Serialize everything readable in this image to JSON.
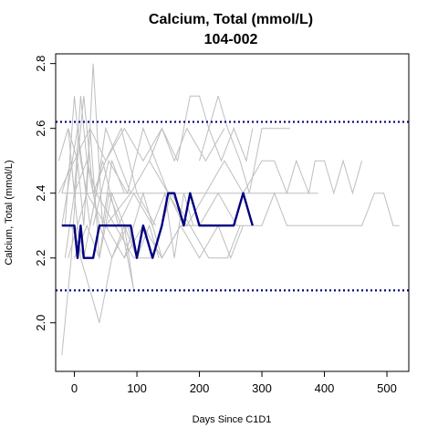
{
  "chart_data": {
    "type": "line",
    "title": "Calcium, Total (mmol/L)",
    "subtitle": "104-002",
    "xlabel": "Days Since C1D1",
    "ylabel": "Calcium, Total (mmol/L)",
    "xlim": [
      -30,
      535
    ],
    "ylim": [
      1.85,
      2.83
    ],
    "xticks": [
      0,
      100,
      200,
      300,
      400,
      500
    ],
    "yticks": [
      2.0,
      2.2,
      2.4,
      2.6,
      2.8
    ],
    "xtick_labels": [
      "0",
      "100",
      "200",
      "300",
      "400",
      "500"
    ],
    "ytick_labels": [
      "2.0",
      "2.2",
      "2.4",
      "2.6",
      "2.8"
    ],
    "reference_lines": [
      {
        "axis": "y",
        "value": 2.62,
        "style": "dotted",
        "color": "#000080"
      },
      {
        "axis": "y",
        "value": 2.1,
        "style": "dotted",
        "color": "#000080"
      }
    ],
    "highlight_color": "#000080",
    "background_color": "#bebebe",
    "highlight": {
      "x": [
        -20,
        0,
        5,
        10,
        15,
        20,
        30,
        40,
        45,
        60,
        90,
        100,
        110,
        125,
        140,
        150,
        160,
        175,
        185,
        200,
        210,
        230,
        255,
        270,
        285
      ],
      "y": [
        2.3,
        2.3,
        2.2,
        2.3,
        2.2,
        2.2,
        2.2,
        2.3,
        2.3,
        2.3,
        2.3,
        2.2,
        2.3,
        2.2,
        2.3,
        2.4,
        2.4,
        2.3,
        2.4,
        2.3,
        2.3,
        2.3,
        2.3,
        2.4,
        2.3
      ]
    },
    "background_series": [
      {
        "x": [
          -25,
          -10,
          0,
          10,
          20,
          35,
          50,
          70,
          90
        ],
        "y": [
          2.5,
          2.6,
          2.4,
          2.7,
          2.5,
          2.4,
          2.6,
          2.5,
          2.4
        ]
      },
      {
        "x": [
          -20,
          -5,
          5,
          15,
          25,
          40,
          55,
          75,
          95
        ],
        "y": [
          1.9,
          2.2,
          2.5,
          2.3,
          2.6,
          2.2,
          2.4,
          2.3,
          2.1
        ]
      },
      {
        "x": [
          -15,
          0,
          10,
          20,
          30,
          45,
          60,
          80
        ],
        "y": [
          2.3,
          2.7,
          2.5,
          2.4,
          2.8,
          2.3,
          2.5,
          2.4
        ]
      },
      {
        "x": [
          -20,
          -5,
          10,
          25,
          40,
          60,
          85,
          100
        ],
        "y": [
          2.4,
          2.5,
          2.2,
          2.1,
          2.0,
          2.2,
          2.3,
          2.2
        ]
      },
      {
        "x": [
          -10,
          5,
          15,
          30,
          50,
          75,
          100,
          130
        ],
        "y": [
          2.6,
          2.5,
          2.7,
          2.4,
          2.5,
          2.6,
          2.4,
          2.3
        ]
      },
      {
        "x": [
          -15,
          0,
          20,
          40,
          60,
          80,
          95
        ],
        "y": [
          2.2,
          2.4,
          2.5,
          2.3,
          2.2,
          2.3,
          2.1
        ]
      },
      {
        "x": [
          -25,
          0,
          25,
          50,
          80,
          110,
          140,
          165,
          185,
          200,
          215,
          230
        ],
        "y": [
          2.4,
          2.5,
          2.6,
          2.5,
          2.6,
          2.5,
          2.6,
          2.5,
          2.7,
          2.7,
          2.6,
          2.7
        ]
      },
      {
        "x": [
          230,
          245,
          265,
          280,
          300,
          345
        ],
        "y": [
          2.7,
          2.6,
          2.5,
          2.4,
          2.6,
          2.6
        ]
      },
      {
        "x": [
          -20,
          10,
          40,
          70,
          100,
          130,
          160,
          190,
          220,
          250,
          275,
          290,
          310,
          330,
          360,
          390
        ],
        "y": [
          2.4,
          2.4,
          2.4,
          2.4,
          2.4,
          2.4,
          2.4,
          2.4,
          2.4,
          2.4,
          2.4,
          2.4,
          2.4,
          2.4,
          2.4,
          2.4
        ]
      },
      {
        "x": [
          -10,
          20,
          50,
          90,
          120,
          150,
          180,
          210,
          240,
          270,
          300,
          320,
          340,
          355,
          375,
          385,
          400,
          415,
          430,
          445,
          460
        ],
        "y": [
          2.2,
          2.4,
          2.3,
          2.4,
          2.5,
          2.4,
          2.3,
          2.4,
          2.5,
          2.4,
          2.5,
          2.5,
          2.4,
          2.5,
          2.4,
          2.5,
          2.5,
          2.4,
          2.5,
          2.4,
          2.5
        ]
      },
      {
        "x": [
          50,
          80,
          110,
          140,
          170,
          200,
          230,
          260,
          280,
          300,
          320,
          340,
          360,
          380,
          410,
          430,
          460,
          480,
          495,
          510,
          520
        ],
        "y": [
          2.3,
          2.2,
          2.3,
          2.2,
          2.3,
          2.3,
          2.4,
          2.3,
          2.3,
          2.3,
          2.4,
          2.3,
          2.3,
          2.3,
          2.3,
          2.3,
          2.3,
          2.4,
          2.4,
          2.3,
          2.3
        ]
      },
      {
        "x": [
          80,
          110,
          140,
          170,
          200,
          230,
          250,
          270
        ],
        "y": [
          2.2,
          2.4,
          2.2,
          2.3,
          2.2,
          2.3,
          2.2,
          2.3
        ]
      },
      {
        "x": [
          120,
          140,
          160,
          180,
          210,
          240
        ],
        "y": [
          2.5,
          2.6,
          2.5,
          2.6,
          2.5,
          2.6
        ]
      },
      {
        "x": [
          30,
          55,
          85,
          110,
          130,
          150,
          175
        ],
        "y": [
          2.3,
          2.5,
          2.4,
          2.6,
          2.5,
          2.4,
          2.3
        ]
      },
      {
        "x": [
          -5,
          15,
          35,
          65,
          95,
          125,
          155,
          185,
          215,
          245,
          265
        ],
        "y": [
          2.3,
          2.2,
          2.4,
          2.3,
          2.2,
          2.2,
          2.4,
          2.3,
          2.2,
          2.2,
          2.3
        ]
      },
      {
        "x": [
          200,
          215,
          235,
          255,
          275,
          285
        ],
        "y": [
          2.5,
          2.6,
          2.5,
          2.6,
          2.5,
          2.6
        ]
      },
      {
        "x": [
          -20,
          5,
          25,
          45,
          70,
          95,
          125,
          145,
          160,
          175,
          190
        ],
        "y": [
          2.3,
          2.6,
          2.3,
          2.5,
          2.3,
          2.4,
          2.3,
          2.4,
          2.2,
          2.4,
          2.3
        ]
      },
      {
        "x": [
          0,
          20,
          40,
          60,
          80,
          100,
          120,
          135
        ],
        "y": [
          2.2,
          2.3,
          2.2,
          2.4,
          2.3,
          2.2,
          2.3,
          2.2
        ]
      }
    ]
  }
}
